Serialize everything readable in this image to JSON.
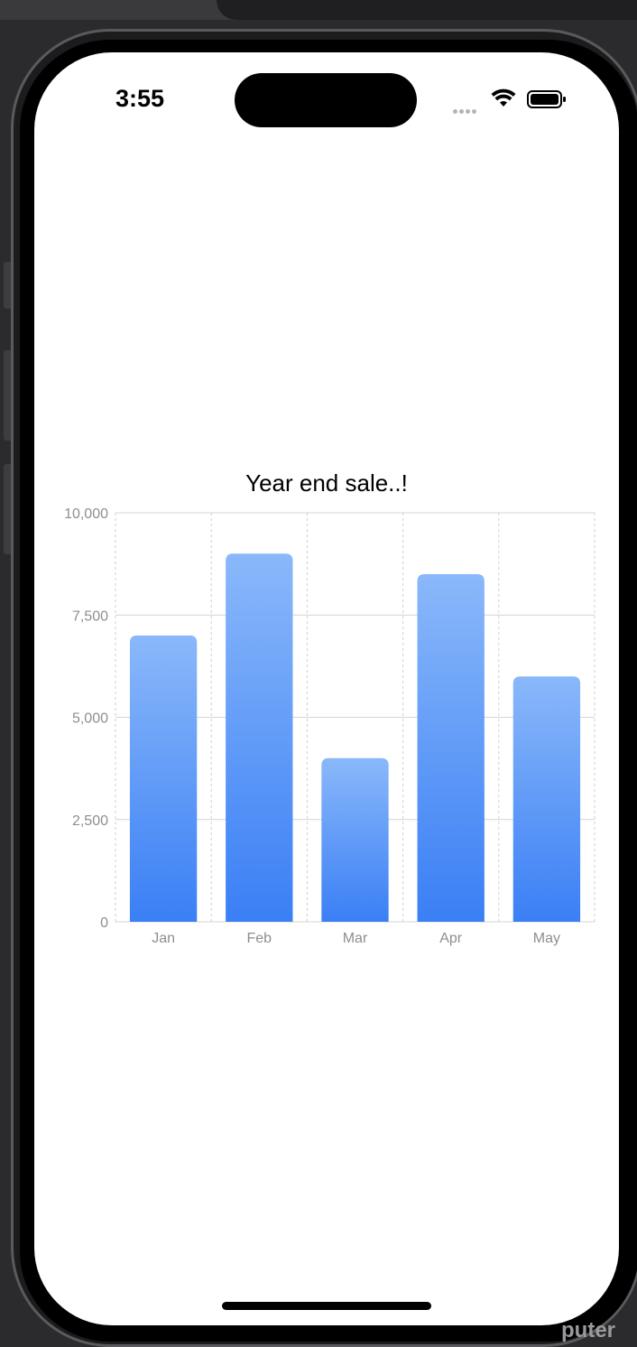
{
  "status_bar": {
    "time": "3:55"
  },
  "icons": {
    "wifi": "wifi-icon",
    "battery": "battery-icon",
    "signal": "signal-dots-icon"
  },
  "chart_data": {
    "type": "bar",
    "title": "Year end sale..!",
    "categories": [
      "Jan",
      "Feb",
      "Mar",
      "Apr",
      "May"
    ],
    "values": [
      7000,
      9000,
      4000,
      8500,
      6000
    ],
    "ylim": [
      0,
      10000
    ],
    "yticks": [
      0,
      2500,
      5000,
      7500,
      10000
    ],
    "ytick_labels": [
      "0",
      "2,500",
      "5,000",
      "7,500",
      "10,000"
    ],
    "xlabel": "",
    "ylabel": "",
    "grid": true,
    "bar_color_top": "#8ab8fa",
    "bar_color_bottom": "#3a7ff5"
  },
  "background_fragment": "puter"
}
